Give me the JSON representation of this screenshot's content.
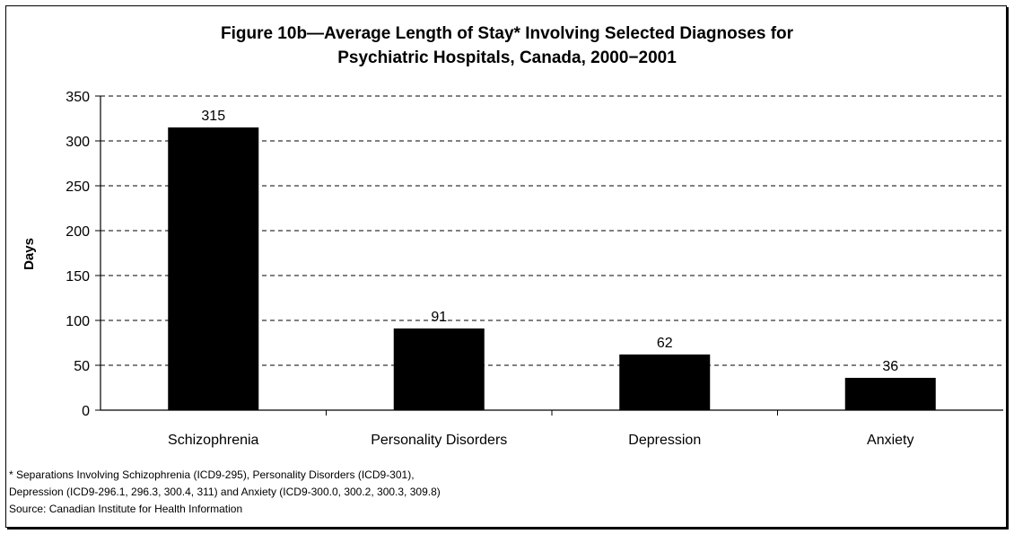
{
  "chart_data": {
    "type": "bar",
    "title_line1": "Figure 10b—Average Length of Stay* Involving Selected Diagnoses for",
    "title_line2": "Psychiatric Hospitals, Canada, 2000−2001",
    "ylabel": "Days",
    "xlabel": "",
    "ylim": [
      0,
      350
    ],
    "yticks": [
      0,
      50,
      100,
      150,
      200,
      250,
      300,
      350
    ],
    "categories": [
      "Schizophrenia",
      "Personality Disorders",
      "Depression",
      "Anxiety"
    ],
    "values": [
      315,
      91,
      62,
      36
    ],
    "grid": "dashed horizontal",
    "bar_color": "#000000"
  },
  "footnotes": {
    "line1": "* Separations Involving Schizophrenia (ICD9-295), Personality Disorders (ICD9-301),",
    "line2": "Depression (ICD9-296.1, 296.3, 300.4, 311) and Anxiety (ICD9-300.0, 300.2, 300.3, 309.8)",
    "source": "Source: Canadian Institute for Health Information"
  }
}
